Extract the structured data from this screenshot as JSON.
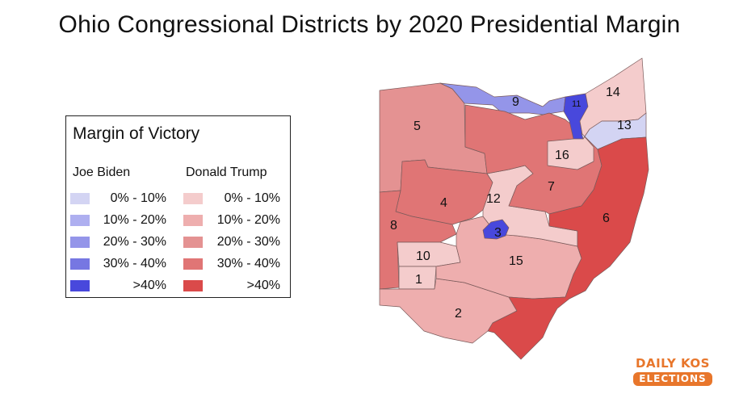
{
  "title": "Ohio Congressional Districts by 2020 Presidential Margin",
  "legend": {
    "title": "Margin of Victory",
    "biden_label": "Joe Biden",
    "trump_label": "Donald Trump",
    "ranges": [
      "0% - 10%",
      "10% - 20%",
      "20% - 30%",
      "30% - 40%",
      ">40%"
    ],
    "biden_colors": [
      "#d3d4f3",
      "#aeaff0",
      "#9495e9",
      "#7677e2",
      "#4848dc"
    ],
    "trump_colors": [
      "#f4cccc",
      "#eeaeae",
      "#e49292",
      "#e07575",
      "#da4a4a"
    ]
  },
  "districts": [
    {
      "id": "1",
      "label": "1",
      "winner": "Trump",
      "margin_range": "0% - 10%"
    },
    {
      "id": "2",
      "label": "2",
      "winner": "Trump",
      "margin_range": "10% - 20%"
    },
    {
      "id": "3",
      "label": "3",
      "winner": "Biden",
      "margin_range": ">40%"
    },
    {
      "id": "4",
      "label": "4",
      "winner": "Trump",
      "margin_range": "30% - 40%"
    },
    {
      "id": "5",
      "label": "5",
      "winner": "Trump",
      "margin_range": "20% - 30%"
    },
    {
      "id": "6",
      "label": "6",
      "winner": "Trump",
      "margin_range": ">40%"
    },
    {
      "id": "7",
      "label": "7",
      "winner": "Trump",
      "margin_range": "30% - 40%"
    },
    {
      "id": "8",
      "label": "8",
      "winner": "Trump",
      "margin_range": "30% - 40%"
    },
    {
      "id": "9",
      "label": "9",
      "winner": "Biden",
      "margin_range": "20% - 30%"
    },
    {
      "id": "10",
      "label": "10",
      "winner": "Trump",
      "margin_range": "0% - 10%"
    },
    {
      "id": "11",
      "label": "11",
      "winner": "Biden",
      "margin_range": ">40%"
    },
    {
      "id": "12",
      "label": "12",
      "winner": "Trump",
      "margin_range": "0% - 10%"
    },
    {
      "id": "13",
      "label": "13",
      "winner": "Biden",
      "margin_range": "0% - 10%"
    },
    {
      "id": "14",
      "label": "14",
      "winner": "Trump",
      "margin_range": "0% - 10%"
    },
    {
      "id": "15",
      "label": "15",
      "winner": "Trump",
      "margin_range": "10% - 20%"
    },
    {
      "id": "16",
      "label": "16",
      "winner": "Trump",
      "margin_range": "0% - 10%"
    }
  ],
  "brand": {
    "line1": "DAILY KOS",
    "line2": "ELECTIONS"
  }
}
